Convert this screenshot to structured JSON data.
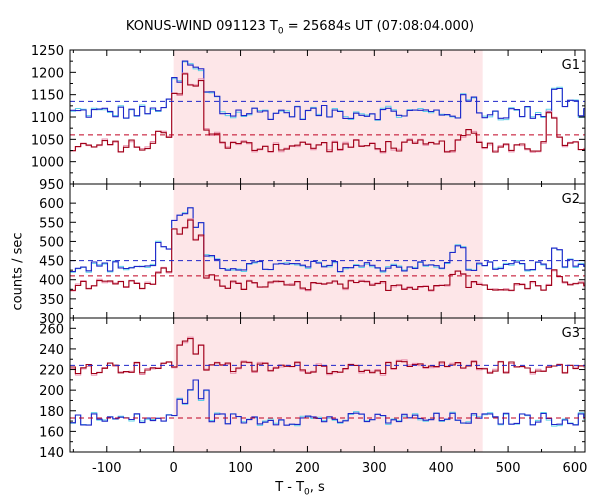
{
  "title": {
    "instrument": "KONUS-WIND 091123 T",
    "sub": "0",
    "rest": " = 25684s UT (07:08:04.000)"
  },
  "ylabel": "counts / sec",
  "xlabel": {
    "main": "T - T",
    "sub": "0",
    "rest": ", s"
  },
  "colors": {
    "blue": "#1f25c9",
    "darkred": "#a00018",
    "cyan": "#5fd0e8",
    "pink": "#e88aa8",
    "shade": "#fde6e8",
    "dash_blue": "#1f25c9",
    "dash_red": "#c00020"
  },
  "chart_data": {
    "type": "line",
    "x_range": [
      -155,
      615
    ],
    "x_ticks": [
      -100,
      0,
      100,
      200,
      300,
      400,
      500,
      600
    ],
    "shaded_interval": [
      0,
      462
    ],
    "panels": [
      {
        "label": "G1",
        "ylim": [
          950,
          1250
        ],
        "y_ticks": [
          950,
          1000,
          1050,
          1100,
          1150,
          1200,
          1250
        ],
        "dashed_levels": [
          1135,
          1060
        ],
        "series": [
          {
            "name": "blue",
            "base": 1110,
            "noise": 16,
            "features": [
              [
                -20,
                1125
              ],
              [
                5,
                1180
              ],
              [
                20,
                1215
              ],
              [
                35,
                1205
              ],
              [
                50,
                1150
              ],
              [
                440,
                1135
              ],
              [
                570,
                1170
              ],
              [
                585,
                1130
              ]
            ]
          },
          {
            "name": "darkred",
            "base": 1035,
            "noise": 14,
            "features": [
              [
                -20,
                1060
              ],
              [
                5,
                1150
              ],
              [
                20,
                1185
              ],
              [
                35,
                1175
              ],
              [
                50,
                1070
              ],
              [
                440,
                1060
              ],
              [
                565,
                1110
              ],
              [
                580,
                1050
              ]
            ]
          }
        ]
      },
      {
        "label": "G2",
        "ylim": [
          300,
          650
        ],
        "y_ticks": [
          300,
          350,
          400,
          450,
          500,
          550,
          600
        ],
        "dashed_levels": [
          450,
          410
        ],
        "series": [
          {
            "name": "blue",
            "base": 435,
            "noise": 14,
            "features": [
              [
                -15,
                490
              ],
              [
                5,
                560
              ],
              [
                20,
                575
              ],
              [
                35,
                540
              ],
              [
                50,
                450
              ],
              [
                420,
                480
              ],
              [
                570,
                480
              ],
              [
                585,
                440
              ]
            ]
          },
          {
            "name": "darkred",
            "base": 385,
            "noise": 13,
            "features": [
              [
                -15,
                420
              ],
              [
                5,
                520
              ],
              [
                20,
                545
              ],
              [
                35,
                510
              ],
              [
                50,
                410
              ],
              [
                420,
                420
              ],
              [
                570,
                420
              ],
              [
                585,
                385
              ]
            ]
          }
        ]
      },
      {
        "label": "G3",
        "ylim": [
          140,
          270
        ],
        "y_ticks": [
          140,
          160,
          180,
          200,
          220,
          240,
          260
        ],
        "dashed_levels": [
          224,
          173
        ],
        "series": [
          {
            "name": "darkred",
            "base": 222,
            "noise": 6,
            "features": [
              [
                15,
                248
              ],
              [
                30,
                238
              ],
              [
                60,
                228
              ]
            ]
          },
          {
            "name": "blue",
            "base": 172,
            "noise": 6,
            "features": [
              [
                10,
                190
              ],
              [
                25,
                205
              ],
              [
                40,
                195
              ],
              [
                55,
                175
              ]
            ]
          }
        ]
      }
    ]
  }
}
